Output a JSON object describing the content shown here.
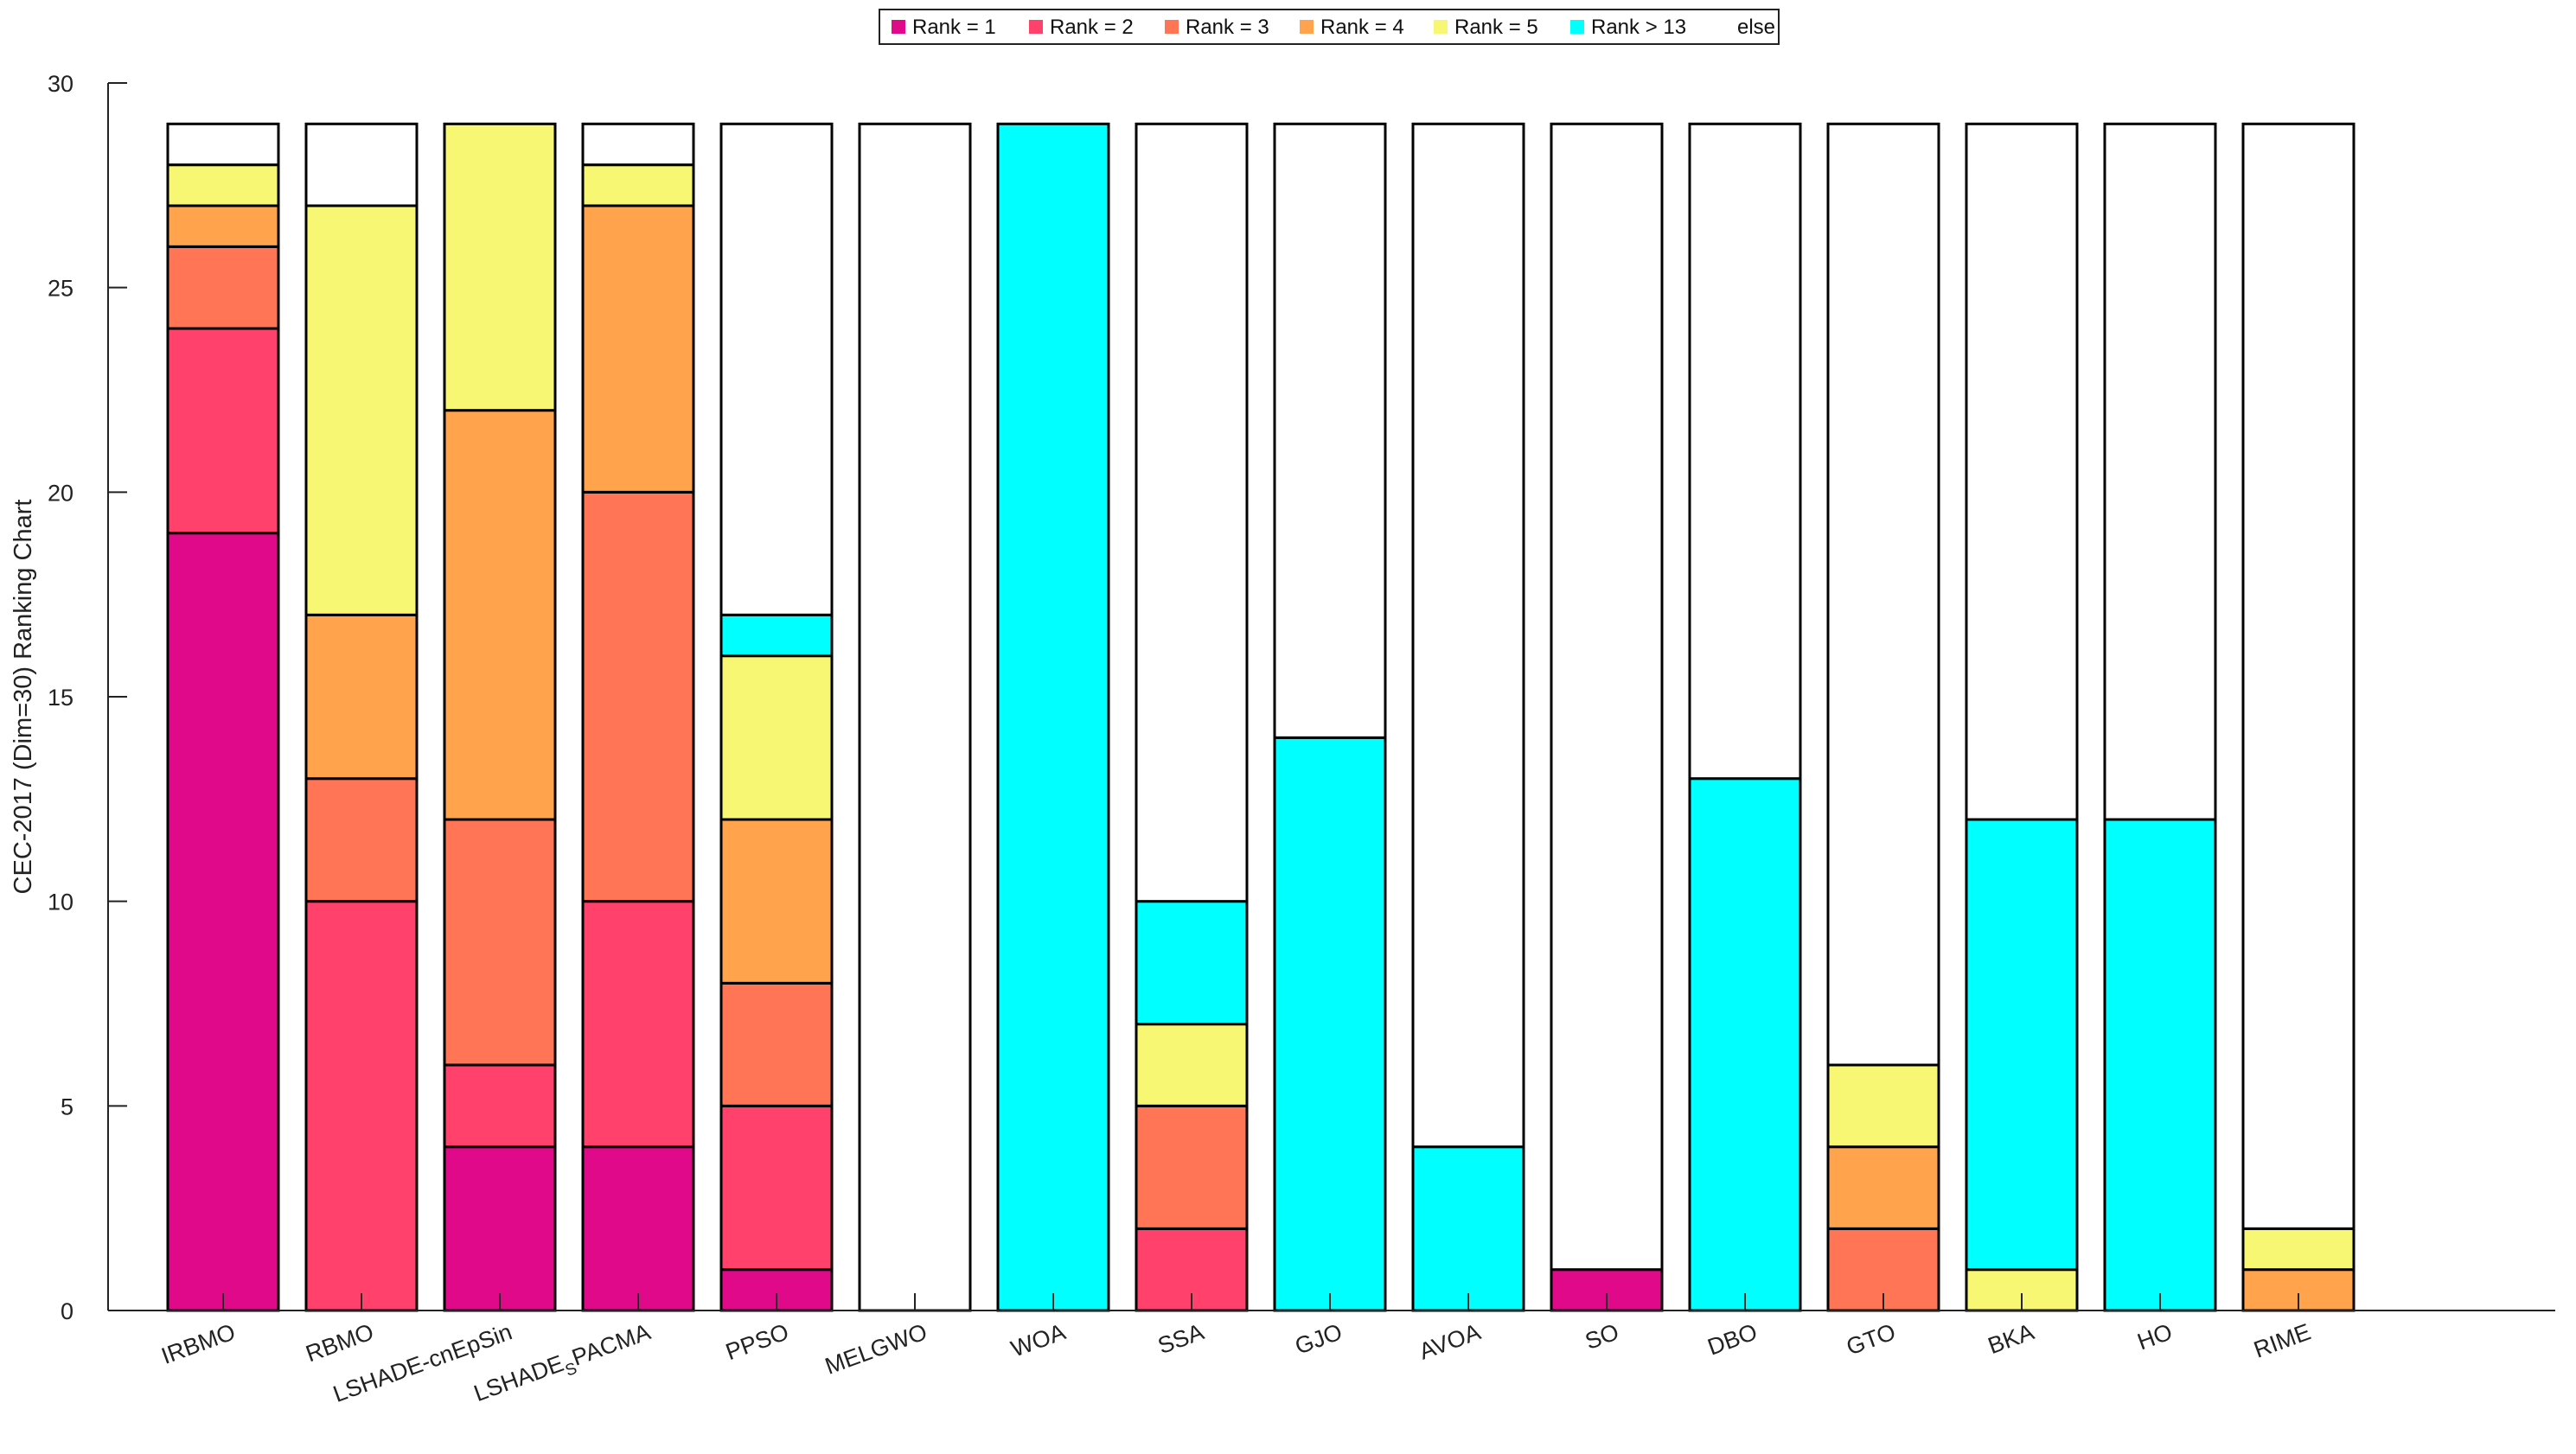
{
  "chart_data": {
    "type": "bar",
    "stacked": true,
    "title": "",
    "xlabel": "",
    "ylabel": "CEC-2017 (Dim=30) Ranking Chart",
    "ylim": [
      0,
      30
    ],
    "yticks": [
      0,
      5,
      10,
      15,
      20,
      25,
      30
    ],
    "grid": false,
    "legend_position": "top-center",
    "categories": [
      "IRBMO",
      "RBMO",
      "LSHADE-cnEpSin",
      "LSHADE_SPACMA",
      "PPSO",
      "MELGWO",
      "WOA",
      "SSA",
      "GJO",
      "AVOA",
      "SO",
      "DBO",
      "GTO",
      "BKA",
      "HO",
      "RIME"
    ],
    "category_labels": [
      {
        "main": "IRBMO"
      },
      {
        "main": "RBMO"
      },
      {
        "main": "LSHADE-cnEpSin"
      },
      {
        "main": "LSHADE",
        "sub": "S",
        "tail": "PACMA"
      },
      {
        "main": "PPSO"
      },
      {
        "main": "MELGWO"
      },
      {
        "main": "WOA"
      },
      {
        "main": "SSA"
      },
      {
        "main": "GJO"
      },
      {
        "main": "AVOA"
      },
      {
        "main": "SO"
      },
      {
        "main": "DBO"
      },
      {
        "main": "GTO"
      },
      {
        "main": "BKA"
      },
      {
        "main": "HO"
      },
      {
        "main": "RIME"
      }
    ],
    "series": [
      {
        "name": "Rank = 1",
        "color": "#e0098a",
        "values": [
          19,
          0,
          4,
          4,
          1,
          0,
          0,
          0,
          0,
          0,
          1,
          0,
          0,
          0,
          0,
          0
        ]
      },
      {
        "name": "Rank = 2",
        "color": "#ff416b",
        "values": [
          5,
          10,
          2,
          6,
          4,
          0,
          0,
          2,
          0,
          0,
          0,
          0,
          0,
          0,
          0,
          0
        ]
      },
      {
        "name": "Rank = 3",
        "color": "#ff7556",
        "values": [
          2,
          3,
          6,
          10,
          3,
          0,
          0,
          3,
          0,
          0,
          0,
          0,
          2,
          0,
          0,
          0
        ]
      },
      {
        "name": "Rank = 4",
        "color": "#ffa34d",
        "values": [
          1,
          4,
          10,
          7,
          4,
          0,
          0,
          0,
          0,
          0,
          0,
          0,
          2,
          0,
          0,
          1
        ]
      },
      {
        "name": "Rank = 5",
        "color": "#f7f773",
        "values": [
          1,
          10,
          7,
          1,
          4,
          0,
          0,
          2,
          0,
          0,
          0,
          0,
          2,
          1,
          0,
          1
        ]
      },
      {
        "name": "Rank > 13",
        "color": "#00ffff",
        "values": [
          0,
          0,
          0,
          0,
          1,
          0,
          29,
          3,
          14,
          4,
          0,
          13,
          0,
          11,
          12,
          0
        ]
      },
      {
        "name": "else",
        "color": "#ffffff",
        "values": [
          1,
          2,
          0,
          1,
          12,
          29,
          0,
          19,
          15,
          25,
          28,
          16,
          23,
          17,
          17,
          27
        ]
      }
    ]
  }
}
